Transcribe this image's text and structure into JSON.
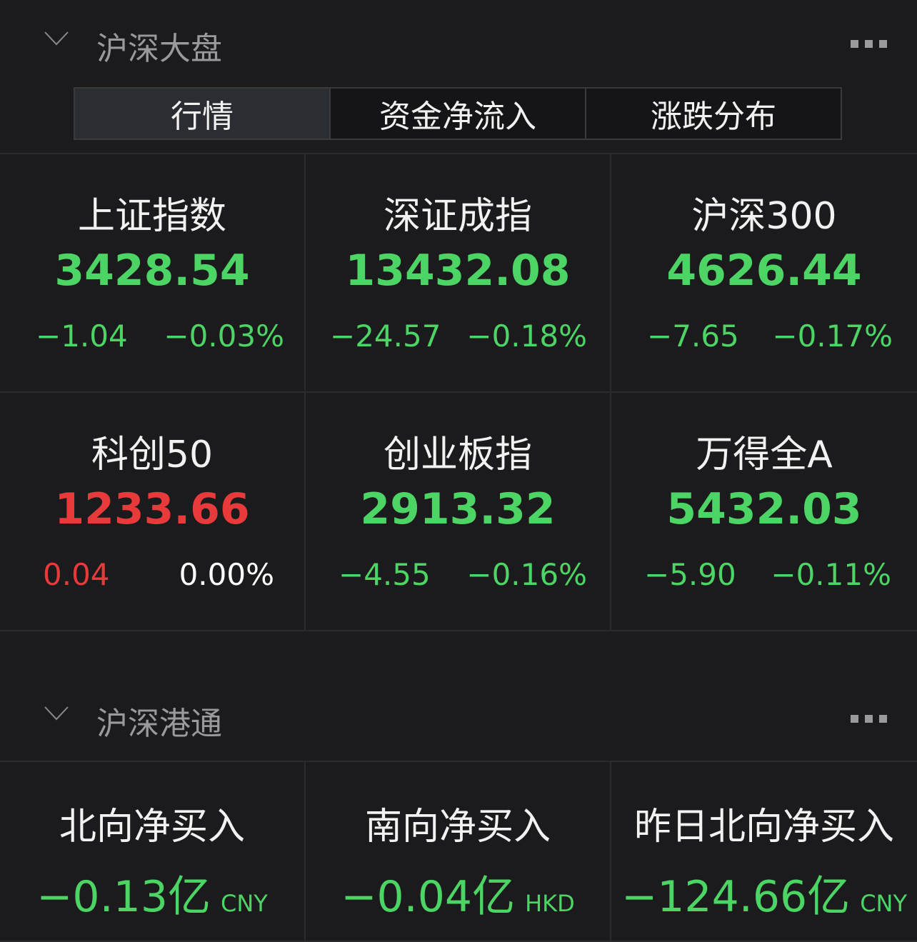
{
  "section1": {
    "title": "沪深大盘",
    "tabs": [
      {
        "label": "行情",
        "active": true
      },
      {
        "label": "资金净流入"
      },
      {
        "label": "涨跌分布"
      }
    ]
  },
  "indices": [
    {
      "name": "上证指数",
      "value": "3428.54",
      "change": "−1.04",
      "percent": "−0.03%",
      "trend": "down"
    },
    {
      "name": "深证成指",
      "value": "13432.08",
      "change": "−24.57",
      "percent": "−0.18%",
      "trend": "down"
    },
    {
      "name": "沪深300",
      "value": "4626.44",
      "change": "−7.65",
      "percent": "−0.17%",
      "trend": "down"
    },
    {
      "name": "科创50",
      "value": "1233.66",
      "change": "0.04",
      "percent": "0.00%",
      "trend": "up"
    },
    {
      "name": "创业板指",
      "value": "2913.32",
      "change": "−4.55",
      "percent": "−0.16%",
      "trend": "down"
    },
    {
      "name": "万得全A",
      "value": "5432.03",
      "change": "−5.90",
      "percent": "−0.11%",
      "trend": "down"
    }
  ],
  "section2": {
    "title": "沪深港通"
  },
  "flows": [
    {
      "name": "北向净买入",
      "amount": "−0.13亿",
      "currency": "CNY"
    },
    {
      "name": "南向净买入",
      "amount": "−0.04亿",
      "currency": "HKD"
    },
    {
      "name": "昨日北向净买入",
      "amount": "−124.66亿",
      "currency": "CNY"
    }
  ],
  "colors": {
    "down": "#4cd464",
    "up": "#e83a3a",
    "flat": "#ffffff",
    "background": "#1b1b1d"
  }
}
